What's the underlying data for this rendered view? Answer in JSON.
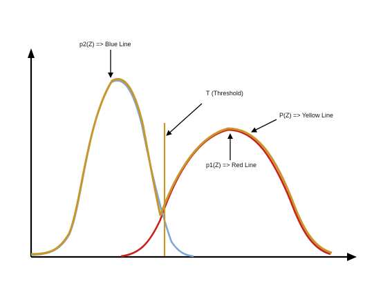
{
  "labels": {
    "p2": "p2(Z) => Blue Line",
    "threshold": "T (Threshold)",
    "p": "P(Z) => Yellow Line",
    "p1": "p1(Z) => Red Line"
  },
  "colors": {
    "axis": "#000000",
    "blue": "#7fa8d8",
    "red": "#cc1f1a",
    "yellow": "#c8962a",
    "threshold": "#c8962a",
    "arrow": "#000000"
  }
}
